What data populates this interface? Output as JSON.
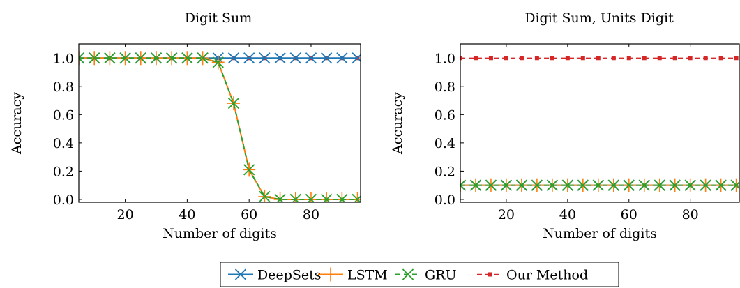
{
  "chart_data": [
    {
      "type": "line",
      "title": "Digit Sum",
      "xlabel": "Number of digits",
      "ylabel": "Accuracy",
      "xlim": [
        5,
        96
      ],
      "ylim": [
        -0.02,
        1.1
      ],
      "xticks": [
        20,
        40,
        60,
        80
      ],
      "yticks": [
        0.0,
        0.2,
        0.4,
        0.6,
        0.8,
        1.0
      ],
      "grid": false,
      "x": [
        5,
        10,
        15,
        20,
        25,
        30,
        35,
        40,
        45,
        50,
        55,
        60,
        65,
        70,
        75,
        80,
        85,
        90,
        95
      ],
      "series": [
        {
          "name": "DeepSets",
          "values": [
            1,
            1,
            1,
            1,
            1,
            1,
            1,
            1,
            1,
            1,
            1,
            1,
            1,
            1,
            1,
            1,
            1,
            1,
            1
          ]
        },
        {
          "name": "LSTM",
          "values": [
            1,
            1,
            1,
            1,
            1,
            1,
            1,
            1,
            1,
            0.97,
            0.68,
            0.21,
            0.02,
            0.0,
            0.0,
            0.0,
            0.0,
            0.0,
            0.0
          ]
        },
        {
          "name": "GRU",
          "values": [
            1,
            1,
            1,
            1,
            1,
            1,
            1,
            1,
            1,
            0.97,
            0.68,
            0.21,
            0.02,
            0.0,
            0.0,
            0.0,
            0.0,
            0.0,
            0.0
          ]
        },
        {
          "name": "Our Method",
          "values": [
            1,
            1,
            1,
            1,
            1,
            1,
            1,
            1,
            1,
            1,
            1,
            1,
            1,
            1,
            1,
            1,
            1,
            1,
            1
          ]
        }
      ]
    },
    {
      "type": "line",
      "title": "Digit Sum, Units Digit",
      "xlabel": "Number of digits",
      "ylabel": "Accuracy",
      "xlim": [
        5,
        96
      ],
      "ylim": [
        -0.02,
        1.1
      ],
      "xticks": [
        20,
        40,
        60,
        80
      ],
      "yticks": [
        0.0,
        0.2,
        0.4,
        0.6,
        0.8,
        1.0
      ],
      "grid": false,
      "x": [
        5,
        10,
        15,
        20,
        25,
        30,
        35,
        40,
        45,
        50,
        55,
        60,
        65,
        70,
        75,
        80,
        85,
        90,
        95
      ],
      "series": [
        {
          "name": "DeepSets",
          "values": [
            0.1,
            0.1,
            0.1,
            0.1,
            0.1,
            0.1,
            0.1,
            0.1,
            0.1,
            0.1,
            0.1,
            0.1,
            0.1,
            0.1,
            0.1,
            0.1,
            0.1,
            0.1,
            0.1
          ]
        },
        {
          "name": "LSTM",
          "values": [
            0.1,
            0.1,
            0.1,
            0.1,
            0.1,
            0.1,
            0.1,
            0.1,
            0.1,
            0.1,
            0.1,
            0.1,
            0.1,
            0.1,
            0.1,
            0.1,
            0.1,
            0.1,
            0.1
          ]
        },
        {
          "name": "GRU",
          "values": [
            0.1,
            0.1,
            0.1,
            0.1,
            0.1,
            0.1,
            0.1,
            0.1,
            0.1,
            0.1,
            0.1,
            0.1,
            0.1,
            0.1,
            0.1,
            0.1,
            0.1,
            0.1,
            0.1
          ]
        },
        {
          "name": "Our Method",
          "values": [
            1,
            1,
            1,
            1,
            1,
            1,
            1,
            1,
            1,
            1,
            1,
            1,
            1,
            1,
            1,
            1,
            1,
            1,
            1
          ]
        }
      ]
    }
  ],
  "legend": {
    "placement": "bottom-center",
    "entries": [
      {
        "name": "DeepSets",
        "color": "#1f77b4",
        "marker": "x",
        "dash": "solid"
      },
      {
        "name": "LSTM",
        "color": "#ff7f0e",
        "marker": "+",
        "dash": "solid"
      },
      {
        "name": "GRU",
        "color": "#2ca02c",
        "marker": "x",
        "dash": "dashed"
      },
      {
        "name": "Our Method",
        "color": "#d62728",
        "marker": "square",
        "dash": "dashed"
      }
    ]
  }
}
